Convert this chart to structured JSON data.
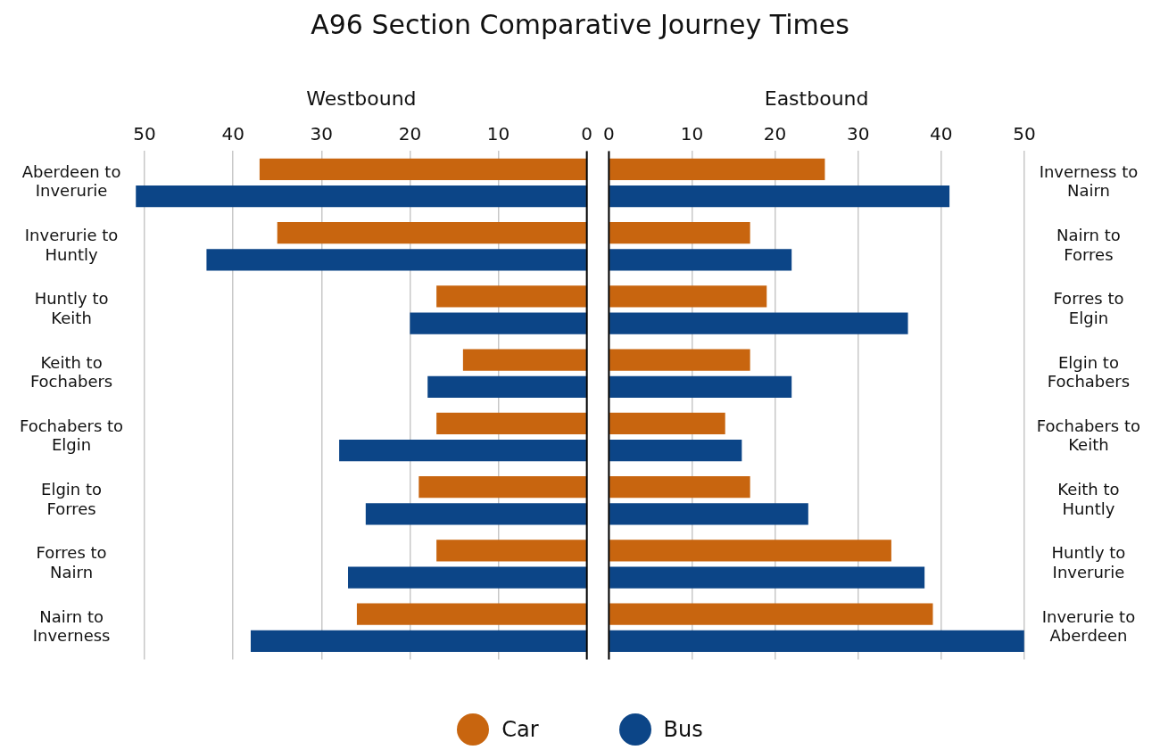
{
  "chart_data": [
    {
      "type": "bar",
      "orientation": "horizontal",
      "title": "A96 Section Comparative Journey Times",
      "xlabel": "Westbound",
      "categories": [
        "Aberdeen to Inverurie",
        "Inverurie to Huntly",
        "Huntly to Keith",
        "Keith to Fochabers",
        "Fochabers to Elgin",
        "Elgin to Forres",
        "Forres to Nairn",
        "Nairn to Inverness"
      ],
      "series": [
        {
          "name": "Car",
          "color": "#c8650f",
          "values": [
            37,
            35,
            17,
            14,
            17,
            19,
            17,
            26
          ]
        },
        {
          "name": "Bus",
          "color": "#0c4587",
          "values": [
            51,
            43,
            20,
            18,
            28,
            25,
            27,
            38
          ]
        }
      ],
      "xlim": [
        51,
        0
      ],
      "xticks": [
        50,
        40,
        30,
        20,
        10,
        0
      ],
      "grid": "x",
      "legend": "bottom"
    },
    {
      "type": "bar",
      "orientation": "horizontal",
      "xlabel": "Eastbound",
      "categories": [
        "Inverness to Nairn",
        "Nairn to Forres",
        "Forres to Elgin",
        "Elgin to Fochabers",
        "Fochabers to Keith",
        "Keith to Huntly",
        "Huntly to Inverurie",
        "Inverurie to Aberdeen"
      ],
      "series": [
        {
          "color": "#c8650f",
          "values": [
            26,
            17,
            19,
            17,
            14,
            17,
            34,
            39
          ]
        },
        {
          "color": "#0c4587",
          "values": [
            41,
            22,
            36,
            22,
            16,
            24,
            38,
            50
          ]
        }
      ],
      "xlim": [
        0,
        50
      ],
      "xticks": [
        0,
        10,
        20,
        30,
        40,
        50
      ],
      "grid": "x"
    }
  ]
}
